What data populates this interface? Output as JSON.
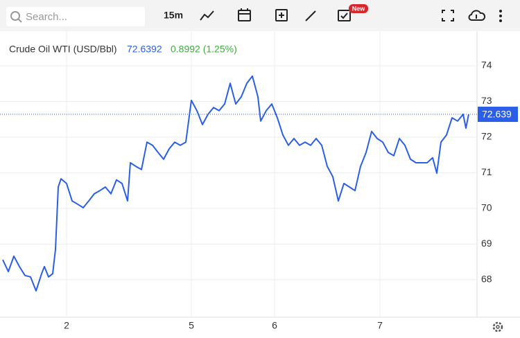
{
  "toolbar": {
    "search_placeholder": "Search...",
    "interval": "15m",
    "badge": "New"
  },
  "chart_data": {
    "type": "line",
    "title": "Crude Oil WTI (USD/Bbl)",
    "price": "72.6392",
    "change": "0.8992 (1.25%)",
    "last_price": 72.639,
    "color": "#2a5ee8",
    "x": [
      1,
      3,
      5,
      7,
      9,
      11,
      13,
      15,
      16,
      17.5,
      19,
      20,
      21,
      22,
      24,
      26,
      28,
      30,
      32,
      34,
      36,
      38,
      40,
      42,
      44,
      46,
      47,
      49,
      51,
      53,
      55,
      57,
      59,
      61,
      63,
      65,
      67,
      69,
      71,
      73,
      75,
      77,
      79,
      81,
      83,
      85,
      87,
      89,
      91,
      93,
      94,
      96,
      98,
      100,
      102,
      104,
      106,
      108,
      110,
      112,
      114,
      116,
      118,
      120,
      122,
      124,
      126,
      128,
      130,
      132,
      134,
      136,
      138,
      140,
      142,
      144,
      146,
      148,
      150,
      152,
      154,
      156,
      157.5,
      159,
      161,
      163,
      165,
      167,
      168,
      169
    ],
    "values": [
      68.56,
      68.23,
      68.66,
      68.37,
      68.12,
      68.08,
      67.69,
      68.17,
      68.37,
      68.08,
      68.17,
      68.85,
      70.6,
      70.83,
      70.7,
      70.21,
      70.12,
      70.02,
      70.21,
      70.41,
      70.5,
      70.6,
      70.41,
      70.8,
      70.7,
      70.21,
      71.28,
      71.18,
      71.09,
      71.86,
      71.77,
      71.57,
      71.38,
      71.67,
      71.86,
      71.77,
      71.86,
      73.03,
      72.74,
      72.35,
      72.64,
      72.83,
      72.74,
      72.93,
      73.51,
      72.93,
      73.13,
      73.51,
      73.71,
      73.13,
      72.45,
      72.74,
      72.93,
      72.54,
      72.06,
      71.77,
      71.96,
      71.77,
      71.86,
      71.77,
      71.96,
      71.77,
      71.18,
      70.89,
      70.21,
      70.7,
      70.6,
      70.5,
      71.18,
      71.57,
      72.16,
      71.96,
      71.86,
      71.57,
      71.48,
      71.96,
      71.77,
      71.38,
      71.28,
      71.28,
      71.28,
      71.42,
      70.99,
      71.86,
      72.06,
      72.54,
      72.45,
      72.64,
      72.25,
      72.64
    ],
    "xlim": [
      0,
      172
    ],
    "xticks": [
      {
        "value": 24,
        "label": "2"
      },
      {
        "value": 69,
        "label": "5"
      },
      {
        "value": 99,
        "label": "6"
      },
      {
        "value": 137,
        "label": "7"
      }
    ],
    "ylim": [
      66.95,
      74.97
    ],
    "yticks": [
      68,
      69,
      70,
      71,
      72,
      73,
      74
    ],
    "grid": true
  }
}
